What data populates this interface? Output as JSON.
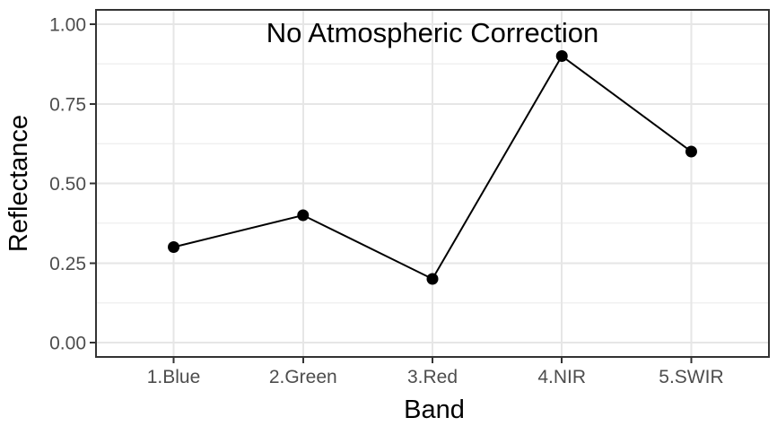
{
  "figure": {
    "background": "#ffffff",
    "panel_background": "#ffffff",
    "panel_border_color": "#333333",
    "grid_major_color": "#e6e6e6",
    "grid_minor_color": "#f0f0f0",
    "axis_tick_color": "#333333",
    "tick_label_color": "#4d4d4d",
    "title_color": "#000000",
    "axis_title_color": "#000000",
    "line_color": "#000000",
    "point_color": "#000000"
  },
  "chart_data": {
    "type": "line",
    "title": "No Atmospheric Correction",
    "xlabel": "Band",
    "ylabel": "Reflectance",
    "categories": [
      "1.Blue",
      "2.Green",
      "3.Red",
      "4.NIR",
      "5.SWIR"
    ],
    "series": [
      {
        "name": "Reflectance",
        "values": [
          0.3,
          0.4,
          0.2,
          0.9,
          0.6
        ]
      }
    ],
    "ylim": [
      0,
      1
    ],
    "y_ticks": [
      0,
      0.25,
      0.5,
      0.75,
      1
    ],
    "y_tick_labels": [
      "0.00",
      "0.25",
      "0.50",
      "0.75",
      "1.00"
    ],
    "y_minor_gridlines": [
      0.125,
      0.375,
      0.625,
      0.875
    ],
    "grid": "major+minor",
    "legend": "none",
    "marker": "filled-circle",
    "style": "ggplot-theme-bw"
  }
}
